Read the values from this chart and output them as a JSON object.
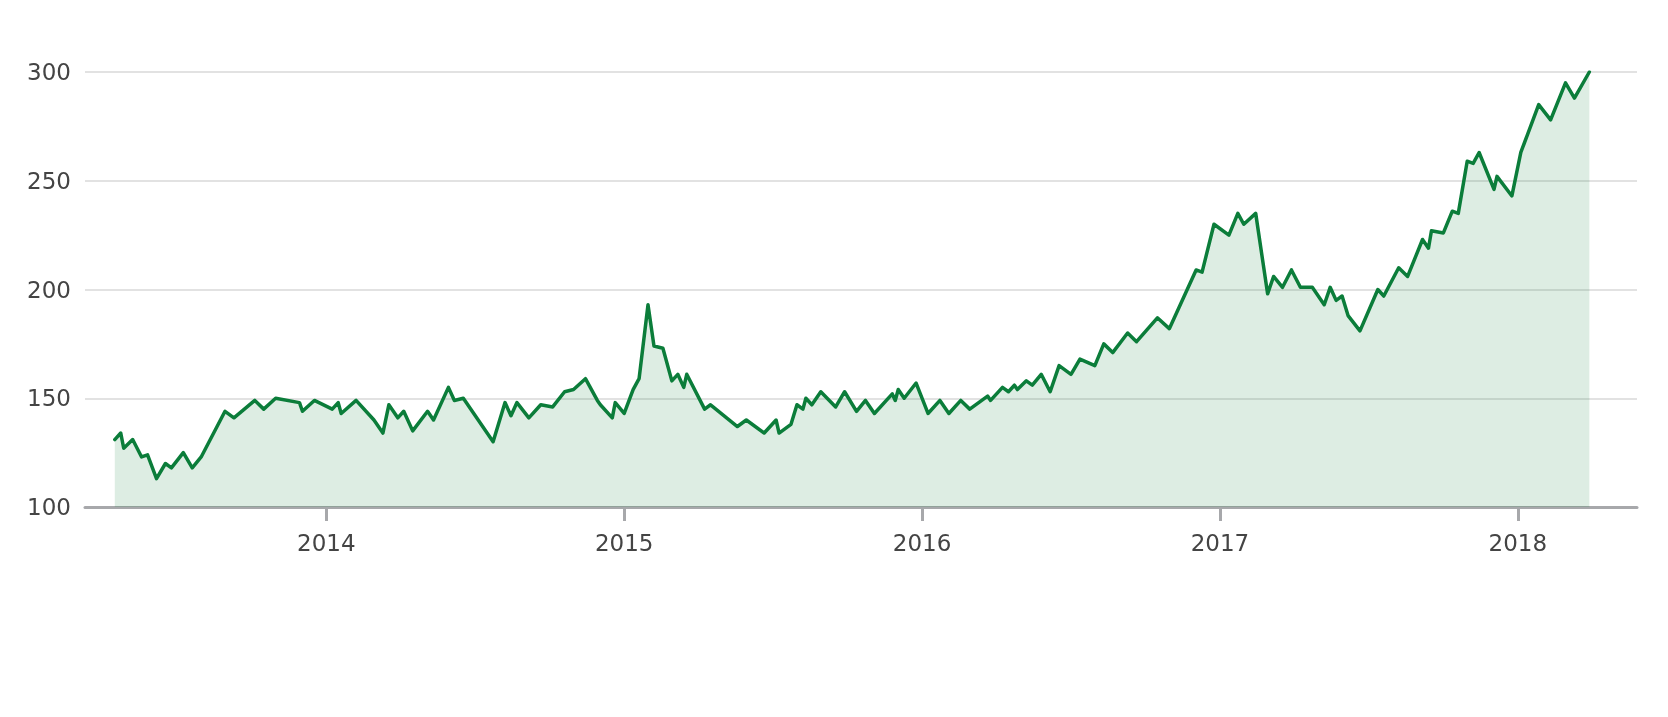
{
  "chart_data": {
    "type": "area",
    "x": [
      2013.29,
      2013.31,
      2013.32,
      2013.35,
      2013.38,
      2013.4,
      2013.43,
      2013.46,
      2013.48,
      2013.52,
      2013.55,
      2013.58,
      2013.66,
      2013.69,
      2013.76,
      2013.79,
      2013.83,
      2013.91,
      2013.92,
      2013.96,
      2014.02,
      2014.04,
      2014.05,
      2014.1,
      2014.16,
      2014.19,
      2014.21,
      2014.24,
      2014.26,
      2014.29,
      2014.34,
      2014.36,
      2014.41,
      2014.43,
      2014.46,
      2014.56,
      2014.6,
      2014.62,
      2014.64,
      2014.68,
      2014.72,
      2014.76,
      2014.8,
      2014.83,
      2014.87,
      2014.91,
      2014.92,
      2014.96,
      2014.97,
      2015.0,
      2015.03,
      2015.05,
      2015.08,
      2015.1,
      2015.13,
      2015.16,
      2015.18,
      2015.2,
      2015.21,
      2015.27,
      2015.29,
      2015.38,
      2015.41,
      2015.47,
      2015.51,
      2015.52,
      2015.56,
      2015.58,
      2015.6,
      2015.61,
      2015.63,
      2015.66,
      2015.71,
      2015.74,
      2015.78,
      2015.81,
      2015.84,
      2015.9,
      2015.91,
      2015.92,
      2015.94,
      2015.98,
      2016.02,
      2016.06,
      2016.09,
      2016.13,
      2016.16,
      2016.22,
      2016.23,
      2016.27,
      2016.29,
      2016.31,
      2016.32,
      2016.35,
      2016.37,
      2016.4,
      2016.43,
      2016.46,
      2016.5,
      2016.53,
      2016.58,
      2016.61,
      2016.64,
      2016.69,
      2016.72,
      2016.79,
      2016.83,
      2016.92,
      2016.94,
      2016.98,
      2017.03,
      2017.06,
      2017.08,
      2017.12,
      2017.16,
      2017.18,
      2017.21,
      2017.24,
      2017.27,
      2017.31,
      2017.35,
      2017.37,
      2017.39,
      2017.41,
      2017.43,
      2017.47,
      2017.53,
      2017.55,
      2017.6,
      2017.63,
      2017.68,
      2017.7,
      2017.71,
      2017.75,
      2017.78,
      2017.8,
      2017.83,
      2017.85,
      2017.87,
      2017.92,
      2017.93,
      2017.98,
      2018.01,
      2018.07,
      2018.11,
      2018.16,
      2018.19,
      2018.24
    ],
    "values": [
      131,
      134,
      127,
      131,
      123,
      124,
      113,
      120,
      118,
      125,
      118,
      123,
      144,
      141,
      149,
      145,
      150,
      148,
      144,
      149,
      145,
      148,
      143,
      149,
      140,
      134,
      147,
      141,
      144,
      135,
      144,
      140,
      155,
      149,
      150,
      130,
      148,
      142,
      148,
      141,
      147,
      146,
      153,
      154,
      159,
      149,
      147,
      141,
      148,
      143,
      154,
      159,
      193,
      174,
      173,
      158,
      161,
      155,
      161,
      145,
      147,
      137,
      140,
      134,
      140,
      134,
      138,
      147,
      145,
      150,
      147,
      153,
      146,
      153,
      144,
      149,
      143,
      152,
      149,
      154,
      150,
      157,
      143,
      149,
      143,
      149,
      145,
      151,
      149,
      155,
      153,
      156,
      154,
      158,
      156,
      161,
      153,
      165,
      161,
      168,
      165,
      175,
      171,
      180,
      176,
      187,
      182,
      209,
      208,
      230,
      225,
      235,
      230,
      235,
      198,
      206,
      201,
      209,
      201,
      201,
      193,
      201,
      195,
      197,
      188,
      181,
      200,
      197,
      210,
      206,
      223,
      219,
      227,
      226,
      236,
      235,
      259,
      258,
      263,
      246,
      252,
      243,
      263,
      285,
      278,
      295,
      288,
      300
    ],
    "color": "#0b7d3a",
    "xlim": [
      2013.19,
      2018.4
    ],
    "xticks": [
      2014,
      2015,
      2016,
      2017,
      2018
    ],
    "ylim": [
      100,
      300
    ],
    "yticks": [
      100,
      150,
      200,
      250,
      300
    ],
    "grid": "y"
  }
}
